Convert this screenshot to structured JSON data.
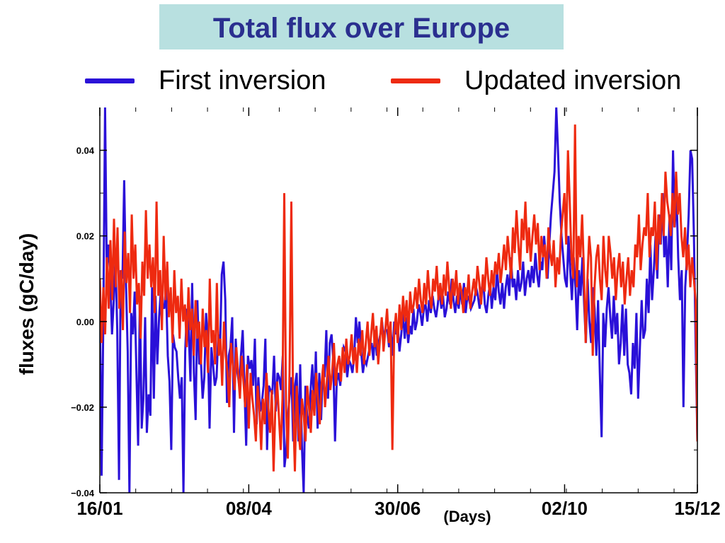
{
  "title": "Total flux over Europe",
  "legend": [
    {
      "label": "First inversion",
      "color": "#2a10d8"
    },
    {
      "label": "Updated inversion",
      "color": "#ee2a10"
    }
  ],
  "chart_data": {
    "type": "line",
    "ylabel": "fluxes (gC/day)",
    "xunit": "(Days)",
    "ylim": [
      -0.04,
      0.05
    ],
    "xlim": [
      0,
      333
    ],
    "yticks": [
      {
        "value": 0.04,
        "label": "0.04"
      },
      {
        "value": 0.02,
        "label": "0.02"
      },
      {
        "value": 0.0,
        "label": "0.00"
      },
      {
        "value": -0.02,
        "label": "−0.02"
      },
      {
        "value": -0.04,
        "label": "−0.04"
      }
    ],
    "xticks": [
      {
        "day": 0,
        "label": "16/01"
      },
      {
        "day": 83,
        "label": "08/04"
      },
      {
        "day": 166,
        "label": "30/06"
      },
      {
        "day": 259,
        "label": "02/10"
      },
      {
        "day": 333,
        "label": "15/12"
      }
    ],
    "series": [
      {
        "name": "First inversion",
        "color": "#2a10d8",
        "values": [
          0.004,
          -0.036,
          0.0,
          0.05,
          0.012,
          0.018,
          0.01,
          -0.003,
          0.005,
          0.015,
          -0.002,
          -0.037,
          0.012,
          0.01,
          0.033,
          0.009,
          -0.007,
          -0.04,
          0.002,
          -0.003,
          0.007,
          -0.012,
          -0.029,
          0.006,
          -0.025,
          -0.018,
          0.001,
          -0.026,
          -0.017,
          -0.022,
          0.008,
          -0.018,
          0.006,
          -0.01,
          0.001,
          0.007,
          0.004,
          0.003,
          0.008,
          -0.008,
          -0.014,
          -0.03,
          -0.003,
          -0.006,
          -0.007,
          -0.013,
          -0.018,
          -0.013,
          -0.04,
          -0.007,
          0.003,
          -0.002,
          -0.014,
          0.009,
          -0.012,
          -0.023,
          0.005,
          -0.01,
          -0.009,
          -0.018,
          -0.013,
          0.002,
          -0.005,
          -0.025,
          -0.006,
          -0.01,
          -0.015,
          -0.013,
          -0.003,
          -0.006,
          0.011,
          0.014,
          0.005,
          -0.019,
          -0.008,
          -0.006,
          0.001,
          -0.026,
          -0.004,
          -0.012,
          -0.015,
          -0.008,
          -0.002,
          -0.015,
          -0.029,
          -0.008,
          -0.011,
          -0.009,
          -0.015,
          -0.004,
          -0.024,
          -0.013,
          -0.021,
          -0.019,
          -0.015,
          -0.004,
          -0.03,
          -0.015,
          -0.016,
          -0.017,
          -0.008,
          -0.021,
          -0.012,
          -0.013,
          -0.016,
          -0.008,
          -0.034,
          -0.03,
          -0.022,
          -0.017,
          -0.013,
          -0.028,
          -0.015,
          -0.012,
          -0.028,
          -0.01,
          -0.029,
          -0.04,
          -0.015,
          -0.022,
          -0.025,
          -0.016,
          -0.01,
          -0.02,
          -0.007,
          -0.025,
          -0.012,
          -0.023,
          -0.011,
          -0.013,
          -0.002,
          -0.018,
          -0.005,
          -0.003,
          -0.009,
          -0.028,
          -0.014,
          -0.012,
          -0.015,
          -0.009,
          -0.006,
          -0.007,
          -0.013,
          -0.009,
          -0.01,
          -0.012,
          -0.008,
          0.001,
          -0.005,
          0.0,
          -0.007,
          -0.012,
          -0.009,
          -0.01,
          -0.008,
          -0.006,
          -0.005,
          -0.009,
          -0.002,
          -0.008,
          -0.005,
          -0.003,
          0.0,
          -0.004,
          -0.002,
          -0.002,
          -0.006,
          -0.002,
          -0.008,
          0.0,
          -0.003,
          -0.001,
          -0.007,
          -0.003,
          0.002,
          -0.004,
          0.001,
          -0.005,
          -0.001,
          -0.003,
          0.003,
          -0.002,
          0.0,
          0.004,
          0.002,
          -0.001,
          0.003,
          0.004,
          0.0,
          0.005,
          0.002,
          0.006,
          0.003,
          0.001,
          0.004,
          0.008,
          0.003,
          0.006,
          0.001,
          0.003,
          0.007,
          0.004,
          0.01,
          0.005,
          0.002,
          0.006,
          0.003,
          0.008,
          0.004,
          0.009,
          0.002,
          0.006,
          0.005,
          0.003,
          0.004,
          0.005,
          0.008,
          0.006,
          0.003,
          0.007,
          0.01,
          0.004,
          0.002,
          0.006,
          0.009,
          0.003,
          0.008,
          0.005,
          0.012,
          0.007,
          0.004,
          0.009,
          0.003,
          0.008,
          0.011,
          0.006,
          0.015,
          0.008,
          0.01,
          0.005,
          0.012,
          0.007,
          0.009,
          0.014,
          0.006,
          0.01,
          0.012,
          0.008,
          0.013,
          0.009,
          0.016,
          0.011,
          0.008,
          0.014,
          0.012,
          0.02,
          0.015,
          0.01,
          0.018,
          0.025,
          0.03,
          0.035,
          0.05,
          0.04,
          0.028,
          0.02,
          0.015,
          0.01,
          0.008,
          0.02,
          0.012,
          0.005,
          0.015,
          0.008,
          -0.002,
          0.012,
          0.006,
          0.015,
          0.004,
          -0.005,
          0.01,
          0.0,
          -0.005,
          0.008,
          0.003,
          -0.008,
          0.005,
          -0.012,
          -0.027,
          0.002,
          -0.006,
          0.003,
          0.008,
          0.001,
          -0.004,
          0.006,
          -0.003,
          0.002,
          -0.01,
          -0.005,
          0.004,
          -0.008,
          0.003,
          -0.01,
          -0.012,
          -0.017,
          -0.005,
          -0.011,
          0.002,
          -0.018,
          -0.006,
          0.005,
          -0.004,
          -0.002,
          0.01,
          0.002,
          0.018,
          0.005,
          0.012,
          0.02,
          0.01,
          0.025,
          0.018,
          0.03,
          0.015,
          0.02,
          0.008,
          0.025,
          0.012,
          0.04,
          0.022,
          0.03,
          0.015,
          0.005,
          0.012,
          -0.02,
          0.008,
          0.015,
          0.025,
          0.04,
          0.038,
          0.02,
          -0.005,
          -0.028
        ]
      },
      {
        "name": "Updated inversion",
        "color": "#ee2a10",
        "values": [
          0.01,
          -0.005,
          0.008,
          -0.003,
          0.015,
          0.003,
          0.019,
          0.005,
          0.024,
          0.008,
          0.022,
          0.003,
          0.012,
          -0.002,
          0.021,
          0.009,
          0.016,
          0.002,
          0.025,
          0.01,
          0.018,
          0.004,
          0.009,
          -0.004,
          0.014,
          0.006,
          0.026,
          0.01,
          0.018,
          0.008,
          0.015,
          0.002,
          0.028,
          0.006,
          0.012,
          -0.002,
          0.02,
          0.005,
          0.014,
          0.001,
          0.008,
          -0.005,
          0.012,
          0.002,
          0.006,
          -0.004,
          0.01,
          0.0,
          0.004,
          -0.006,
          0.008,
          -0.002,
          0.003,
          -0.008,
          0.005,
          -0.004,
          0.0,
          -0.01,
          0.003,
          -0.006,
          -0.002,
          -0.012,
          0.01,
          -0.005,
          -0.002,
          -0.01,
          0.009,
          -0.008,
          -0.004,
          -0.015,
          0.0,
          -0.008,
          -0.012,
          -0.02,
          -0.005,
          -0.01,
          -0.016,
          -0.006,
          -0.012,
          -0.018,
          -0.008,
          -0.014,
          -0.02,
          -0.01,
          -0.025,
          -0.012,
          -0.018,
          -0.022,
          -0.028,
          -0.015,
          -0.02,
          -0.03,
          -0.018,
          -0.024,
          -0.012,
          -0.02,
          -0.026,
          -0.016,
          -0.035,
          -0.02,
          -0.014,
          -0.022,
          -0.03,
          -0.018,
          0.03,
          -0.02,
          -0.032,
          -0.012,
          0.028,
          -0.02,
          -0.035,
          -0.015,
          -0.025,
          -0.03,
          -0.018,
          -0.022,
          -0.028,
          -0.015,
          -0.02,
          -0.026,
          -0.016,
          -0.022,
          -0.012,
          -0.018,
          -0.024,
          -0.015,
          -0.01,
          -0.02,
          -0.014,
          -0.008,
          -0.016,
          -0.012,
          -0.005,
          -0.015,
          -0.01,
          -0.008,
          -0.014,
          -0.006,
          -0.012,
          -0.004,
          -0.01,
          -0.008,
          -0.003,
          -0.01,
          -0.006,
          -0.012,
          -0.004,
          -0.008,
          -0.002,
          -0.01,
          -0.005,
          0.0,
          -0.008,
          -0.003,
          0.002,
          -0.006,
          -0.001,
          -0.01,
          -0.004,
          0.001,
          -0.007,
          -0.002,
          0.003,
          -0.005,
          0.0,
          -0.03,
          -0.003,
          0.002,
          -0.005,
          0.004,
          -0.002,
          0.006,
          0.0,
          0.005,
          -0.003,
          0.007,
          0.002,
          0.004,
          0.008,
          0.003,
          0.01,
          0.005,
          0.002,
          0.009,
          0.004,
          0.012,
          0.006,
          0.003,
          0.01,
          0.007,
          0.013,
          0.005,
          0.009,
          0.004,
          0.011,
          0.006,
          0.014,
          0.008,
          0.003,
          0.01,
          0.006,
          0.012,
          0.004,
          0.009,
          0.007,
          0.002,
          0.008,
          0.005,
          0.011,
          0.003,
          0.007,
          0.01,
          0.006,
          0.013,
          0.009,
          0.004,
          0.011,
          0.007,
          0.015,
          0.01,
          0.006,
          0.012,
          0.008,
          0.014,
          0.011,
          0.016,
          0.009,
          0.013,
          0.018,
          0.012,
          0.02,
          0.015,
          0.01,
          0.022,
          0.016,
          0.026,
          0.018,
          0.012,
          0.024,
          0.019,
          0.028,
          0.016,
          0.022,
          0.014,
          0.02,
          0.025,
          0.018,
          0.023,
          0.012,
          0.02,
          0.015,
          0.018,
          0.01,
          0.022,
          0.016,
          0.013,
          0.019,
          0.008,
          0.015,
          0.011,
          0.02,
          0.025,
          0.03,
          0.018,
          0.04,
          0.028,
          0.015,
          0.01,
          0.046,
          0.008,
          0.02,
          0.015,
          0.025,
          0.012,
          -0.005,
          0.01,
          0.02,
          0.015,
          -0.008,
          0.008,
          0.015,
          0.018,
          0.01,
          0.005,
          0.02,
          0.012,
          0.008,
          0.02,
          0.016,
          0.01,
          0.015,
          0.005,
          0.012,
          0.016,
          0.008,
          0.014,
          0.004,
          0.01,
          0.015,
          0.006,
          0.012,
          0.008,
          0.018,
          0.015,
          0.025,
          0.012,
          0.018,
          0.022,
          0.02,
          0.03,
          0.015,
          0.022,
          0.02,
          0.028,
          0.012,
          0.025,
          0.018,
          0.03,
          0.02,
          0.035,
          0.028,
          0.025,
          0.02,
          0.03,
          0.022,
          0.035,
          0.025,
          0.03,
          0.02,
          0.015,
          0.022,
          0.012,
          0.018,
          0.008,
          0.015,
          0.01,
          0.005,
          -0.028
        ]
      }
    ]
  }
}
